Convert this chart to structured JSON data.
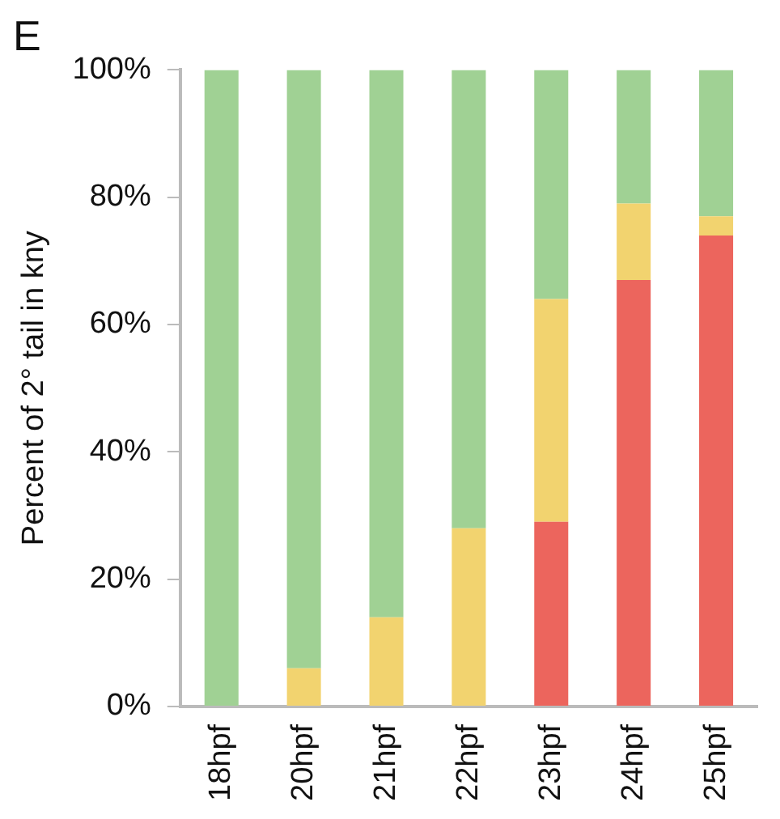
{
  "chart_data": {
    "type": "bar",
    "title": "E",
    "ylabel": "Percent of 2° tail in kny",
    "stacked": true,
    "categories": [
      "18hpf",
      "20hpf",
      "21hpf",
      "22hpf",
      "23hpf",
      "24hpf",
      "25hpf"
    ],
    "series": [
      {
        "color": "#ec655d",
        "values": [
          0,
          0,
          0,
          0,
          29,
          67,
          74
        ]
      },
      {
        "color": "#f2d36f",
        "values": [
          0,
          6,
          14,
          28,
          35,
          12,
          3
        ]
      },
      {
        "color": "#a0d194",
        "values": [
          100,
          94,
          86,
          72,
          36,
          21,
          23
        ]
      }
    ],
    "ylim": [
      0,
      100
    ],
    "yticks": [
      {
        "value": 0,
        "label": "0%"
      },
      {
        "value": 20,
        "label": "20%"
      },
      {
        "value": 40,
        "label": "40%"
      },
      {
        "value": 60,
        "label": "60%"
      },
      {
        "value": 80,
        "label": "80%"
      },
      {
        "value": 100,
        "label": "100%"
      }
    ],
    "grid": false,
    "legend": false
  }
}
